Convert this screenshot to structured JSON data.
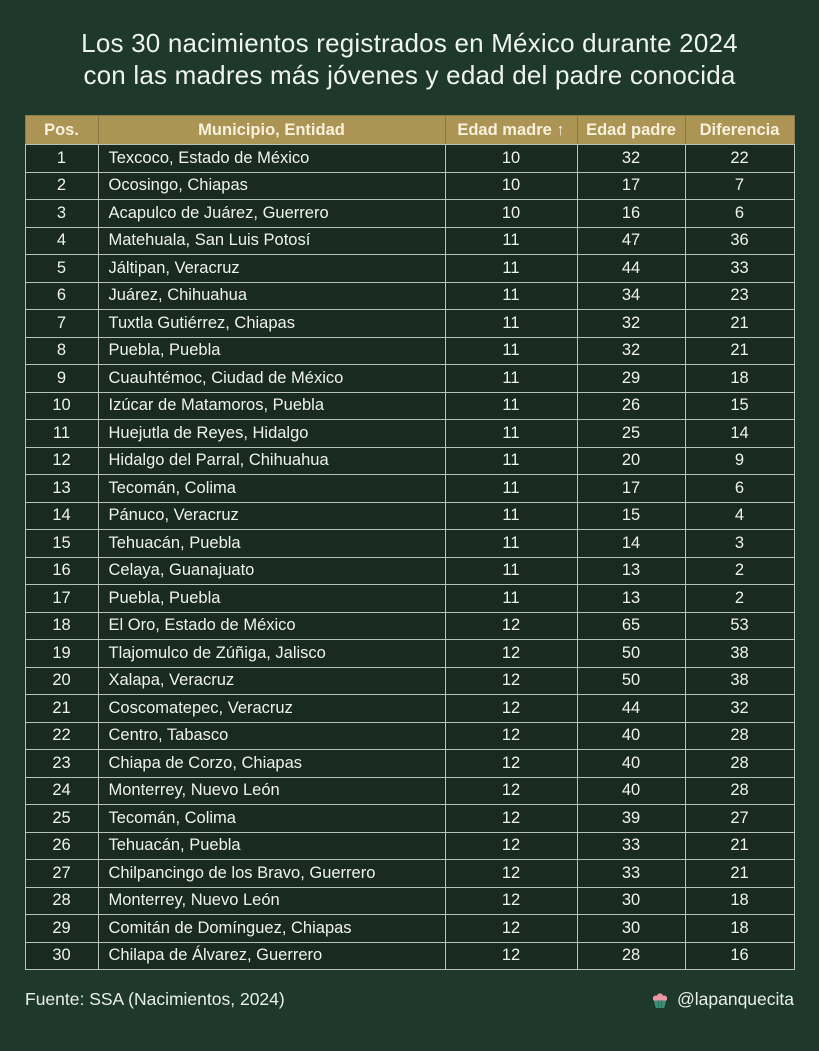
{
  "title": {
    "line1": "Los 30 nacimientos registrados en México durante 2024",
    "line2": "con las madres más jóvenes y edad del padre conocida"
  },
  "chart_data": {
    "type": "table",
    "title": "Los 30 nacimientos registrados en México durante 2024 con las madres más jóvenes y edad del padre conocida",
    "columns": [
      "Pos.",
      "Municipio, Entidad",
      "Edad madre ↑",
      "Edad padre",
      "Diferencia"
    ],
    "sort_indicator": "Edad madre ascending",
    "rows": [
      [
        1,
        "Texcoco, Estado de México",
        10,
        32,
        22
      ],
      [
        2,
        "Ocosingo, Chiapas",
        10,
        17,
        7
      ],
      [
        3,
        "Acapulco de Juárez, Guerrero",
        10,
        16,
        6
      ],
      [
        4,
        "Matehuala, San Luis Potosí",
        11,
        47,
        36
      ],
      [
        5,
        "Jáltipan, Veracruz",
        11,
        44,
        33
      ],
      [
        6,
        "Juárez, Chihuahua",
        11,
        34,
        23
      ],
      [
        7,
        "Tuxtla Gutiérrez, Chiapas",
        11,
        32,
        21
      ],
      [
        8,
        "Puebla, Puebla",
        11,
        32,
        21
      ],
      [
        9,
        "Cuauhtémoc, Ciudad de México",
        11,
        29,
        18
      ],
      [
        10,
        "Izúcar de Matamoros, Puebla",
        11,
        26,
        15
      ],
      [
        11,
        "Huejutla de Reyes, Hidalgo",
        11,
        25,
        14
      ],
      [
        12,
        "Hidalgo del Parral, Chihuahua",
        11,
        20,
        9
      ],
      [
        13,
        "Tecomán, Colima",
        11,
        17,
        6
      ],
      [
        14,
        "Pánuco, Veracruz",
        11,
        15,
        4
      ],
      [
        15,
        "Tehuacán, Puebla",
        11,
        14,
        3
      ],
      [
        16,
        "Celaya, Guanajuato",
        11,
        13,
        2
      ],
      [
        17,
        "Puebla, Puebla",
        11,
        13,
        2
      ],
      [
        18,
        "El Oro, Estado de México",
        12,
        65,
        53
      ],
      [
        19,
        "Tlajomulco de Zúñiga, Jalisco",
        12,
        50,
        38
      ],
      [
        20,
        "Xalapa, Veracruz",
        12,
        50,
        38
      ],
      [
        21,
        "Coscomatepec, Veracruz",
        12,
        44,
        32
      ],
      [
        22,
        "Centro, Tabasco",
        12,
        40,
        28
      ],
      [
        23,
        "Chiapa de Corzo, Chiapas",
        12,
        40,
        28
      ],
      [
        24,
        "Monterrey, Nuevo León",
        12,
        40,
        28
      ],
      [
        25,
        "Tecomán, Colima",
        12,
        39,
        27
      ],
      [
        26,
        "Tehuacán, Puebla",
        12,
        33,
        21
      ],
      [
        27,
        "Chilpancingo de los Bravo, Guerrero",
        12,
        33,
        21
      ],
      [
        28,
        "Monterrey, Nuevo León",
        12,
        30,
        18
      ],
      [
        29,
        "Comitán de Domínguez, Chiapas",
        12,
        30,
        18
      ],
      [
        30,
        "Chilapa de Álvarez, Guerrero",
        12,
        28,
        16
      ]
    ]
  },
  "footer": {
    "source": "Fuente: SSA (Nacimientos, 2024)",
    "credit": "@lapanquecita",
    "credit_icon": "cupcake-icon"
  },
  "colors": {
    "page_background": "#1e382b",
    "row_background": "#192a20",
    "header_background": "#ac9455",
    "header_text": "#f8f1dd",
    "body_text": "#eef3ef",
    "border": "#b9c2ba"
  }
}
